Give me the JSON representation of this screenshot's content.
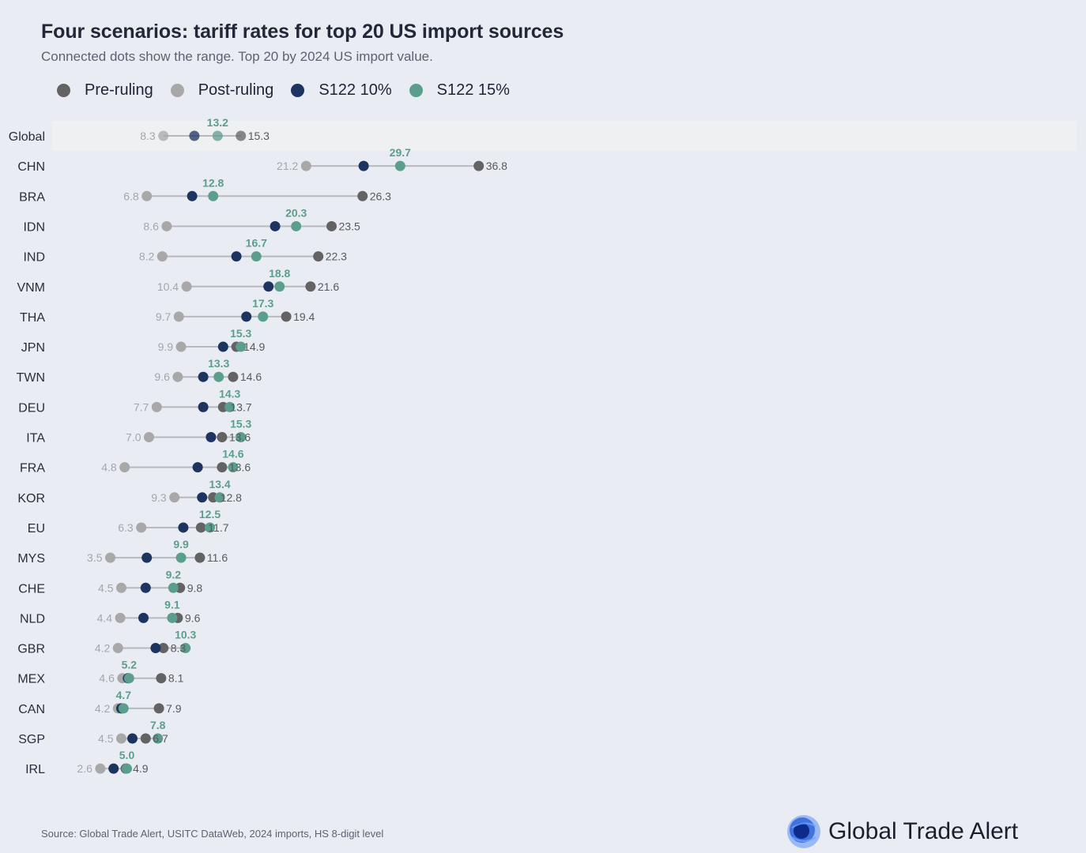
{
  "header": {
    "title": "Four scenarios: tariff rates for top 20 US import sources",
    "subtitle": "Connected dots show the range. Top 20 by 2024 US import value."
  },
  "legend": [
    {
      "label": "Pre-ruling",
      "color": "#636363"
    },
    {
      "label": "Post-ruling",
      "color": "#a8a8a8"
    },
    {
      "label": "S122 10%",
      "color": "#1d3461"
    },
    {
      "label": "S122 15%",
      "color": "#5c9e8e"
    }
  ],
  "chart_data": {
    "type": "dot-range",
    "categories": [
      "Global",
      "CHN",
      "BRA",
      "IDN",
      "IND",
      "VNM",
      "THA",
      "JPN",
      "TWN",
      "DEU",
      "ITA",
      "FRA",
      "KOR",
      "EU",
      "MYS",
      "CHE",
      "NLD",
      "GBR",
      "MEX",
      "CAN",
      "SGP",
      "IRL"
    ],
    "series": [
      {
        "name": "Pre-ruling",
        "values": [
          15.3,
          36.8,
          26.3,
          23.5,
          22.3,
          21.6,
          19.4,
          14.9,
          14.6,
          13.7,
          13.6,
          13.6,
          12.8,
          11.7,
          11.6,
          9.8,
          9.6,
          8.3,
          8.1,
          7.9,
          6.7,
          4.9
        ]
      },
      {
        "name": "Post-ruling",
        "values": [
          8.3,
          21.2,
          6.8,
          8.6,
          8.2,
          10.4,
          9.7,
          9.9,
          9.6,
          7.7,
          7.0,
          4.8,
          9.3,
          6.3,
          3.5,
          4.5,
          4.4,
          4.2,
          4.6,
          4.2,
          4.5,
          2.6
        ]
      },
      {
        "name": "S122 10%",
        "values": [
          11.1,
          26.4,
          10.9,
          18.4,
          14.9,
          17.8,
          15.8,
          13.7,
          11.9,
          11.9,
          12.6,
          11.4,
          11.8,
          10.1,
          6.8,
          6.7,
          6.5,
          7.6,
          5.1,
          4.5,
          5.5,
          3.8
        ]
      },
      {
        "name": "S122 15%",
        "values": [
          13.2,
          29.7,
          12.8,
          20.3,
          16.7,
          18.8,
          17.3,
          15.3,
          13.3,
          14.3,
          15.3,
          14.6,
          13.4,
          12.5,
          9.9,
          9.2,
          9.1,
          10.3,
          5.2,
          4.7,
          7.8,
          5.0
        ]
      }
    ],
    "pre_labels": [
      "15.3",
      "36.8",
      "26.3",
      "23.5",
      "22.3",
      "21.6",
      "19.4",
      "14.9",
      "14.6",
      "13.7",
      "13.6",
      "13.6",
      "12.8",
      "11.7",
      "11.6",
      "9.8",
      "9.6",
      "8.3",
      "8.1",
      "7.9",
      "6.7",
      "4.9"
    ],
    "post_labels": [
      "8.3",
      "21.2",
      "6.8",
      "8.6",
      "8.2",
      "10.4",
      "9.7",
      "9.9",
      "9.6",
      "7.7",
      "7.0",
      "4.8",
      "9.3",
      "6.3",
      "3.5",
      "4.5",
      "4.4",
      "4.2",
      "4.6",
      "4.2",
      "4.5",
      "2.6"
    ],
    "s15_labels": [
      "13.2",
      "29.7",
      "12.8",
      "20.3",
      "16.7",
      "18.8",
      "17.3",
      "15.3",
      "13.3",
      "14.3",
      "15.3",
      "14.6",
      "13.4",
      "12.5",
      "9.9",
      "9.2",
      "9.1",
      "10.3",
      "5.2",
      "4.7",
      "7.8",
      "5.0"
    ],
    "highlight_row": "Global",
    "xlim": [
      0,
      40
    ],
    "grid": false,
    "legend_position": "top-left"
  },
  "footer": {
    "source": "Source: Global Trade Alert, USITC DataWeb, 2024 imports, HS 8-digit level",
    "brand": "Global Trade Alert"
  }
}
